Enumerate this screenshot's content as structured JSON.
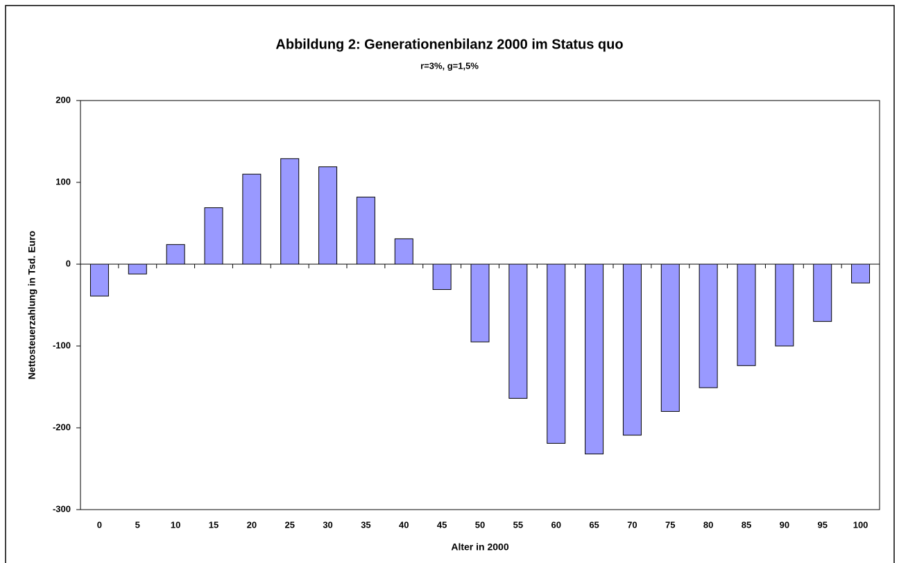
{
  "chart_data": {
    "type": "bar",
    "title": "Abbildung 2: Generationenbilanz 2000 im Status quo",
    "subtitle": "r=3%, g=1,5%",
    "x_label": "Alter in 2000",
    "y_label": "Nettosteuerzahlung in Tsd. Euro",
    "categories": [
      "0",
      "5",
      "10",
      "15",
      "20",
      "25",
      "30",
      "35",
      "40",
      "45",
      "50",
      "55",
      "60",
      "65",
      "70",
      "75",
      "80",
      "85",
      "90",
      "95",
      "100"
    ],
    "values": [
      -39,
      -12,
      24,
      69,
      110,
      129,
      119,
      82,
      31,
      -31,
      -95,
      -164,
      -219,
      -232,
      -209,
      -180,
      -151,
      -124,
      -100,
      -70,
      -23
    ],
    "color": "#9999ff",
    "ylim": [
      -300,
      200
    ],
    "yticks": [
      -300,
      -200,
      -100,
      0,
      100,
      200
    ],
    "grid": false
  }
}
